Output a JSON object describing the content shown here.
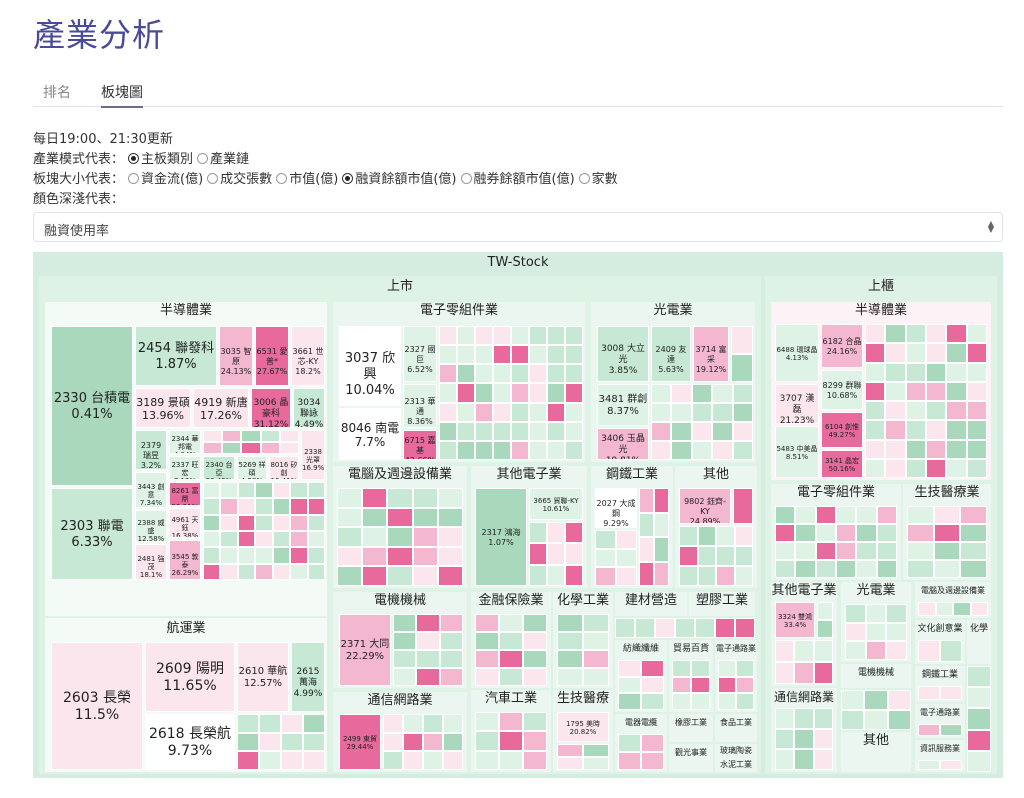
{
  "page_title": "產業分析",
  "tabs": [
    {
      "label": "排名"
    },
    {
      "label": "板塊圖"
    }
  ],
  "update_text": "每日19:00、21:30更新",
  "industry_mode": {
    "label": "產業模式代表：",
    "options": [
      "主板類別",
      "產業鏈"
    ],
    "selected": 0
  },
  "block_size": {
    "label": "板塊大小代表：",
    "options": [
      "資金流(億)",
      "成交張數",
      "市值(億)",
      "融資餘額市值(億)",
      "融券餘額市值(億)",
      "家數"
    ],
    "selected": 3
  },
  "color_depth": {
    "label": "顏色深淺代表："
  },
  "select": {
    "value": "融資使用率"
  },
  "colors": {
    "green_dark": "#a9d8bd",
    "green_mid": "#c6e8d4",
    "green_light": "#dff2e6",
    "pink_light": "#fbe6ee",
    "pink_mid": "#f3b7cf",
    "pink_dark": "#e86a9d",
    "frame": "#d4ede0"
  },
  "treemap": {
    "root": "TW-Stock",
    "markets": [
      {
        "name": "上市"
      },
      {
        "name": "上櫃"
      }
    ],
    "sectors": {
      "semi": "半導體業",
      "shipping": "航運業",
      "elec_comp": "電子零組件業",
      "opto": "光電業",
      "computer": "電腦及週邊設備業",
      "other_elec": "其他電子業",
      "steel": "鋼鐵工業",
      "other": "其他",
      "electric_machine": "電機機械",
      "finance": "金融保險業",
      "chemical": "化學工業",
      "building": "建材營造",
      "plastic": "塑膠工業",
      "comm": "通信網路業",
      "auto": "汽車工業",
      "biotech": "生技醫療業",
      "textile": "紡織纖維",
      "trade": "貿易百貨",
      "elec_channel": "電子通路業",
      "rubber": "橡膠工業",
      "food": "食品工業",
      "power": "電器電纜",
      "tourism": "觀光事業",
      "glass": "玻璃陶瓷",
      "cement": "水泥工業",
      "otc_semi": "半導體業",
      "otc_elec_comp": "電子零組件業",
      "otc_biotech": "生技醫療業",
      "otc_other_elec": "其他電子業",
      "otc_opto": "光電業",
      "otc_computer": "電腦及週邊設備業",
      "otc_electric_machine": "電機機械",
      "otc_culture": "文化創意業",
      "otc_chemical": "化學工業",
      "otc_comm": "通信網路業",
      "otc_steel": "鋼鐵工業",
      "otc_other": "其他",
      "otc_elec_channel": "電子通路業",
      "otc_info": "資訊服務業"
    },
    "stocks": {
      "s2330": {
        "name": "2330 台積電",
        "value": "0.41%"
      },
      "s2303": {
        "name": "2303 聯電",
        "value": "6.33%"
      },
      "s2454": {
        "name": "2454 聯發科",
        "value": "1.87%"
      },
      "s3035": {
        "name": "3035 智原",
        "value": "24.13%"
      },
      "s6531": {
        "name": "6531 愛普*",
        "value": "27.67%"
      },
      "s3661": {
        "name": "3661 世芯-KY",
        "value": "18.2%"
      },
      "s3189": {
        "name": "3189 景碩",
        "value": "13.96%"
      },
      "s4919": {
        "name": "4919 新唐",
        "value": "17.26%"
      },
      "s3006": {
        "name": "3006 晶豪科",
        "value": "31.12%"
      },
      "s3034": {
        "name": "3034 聯詠",
        "value": "4.49%"
      },
      "s2379": {
        "name": "2379 瑞昱",
        "value": "3.2%"
      },
      "s2344": {
        "name": "2344 華邦電",
        "value": "4.84%"
      },
      "s2337": {
        "name": "2337 旺宏",
        "value": "7.12%"
      },
      "s2340": {
        "name": "2340 台亞",
        "value": "20.45%"
      },
      "s5269": {
        "name": "5269 祥碩",
        "value": "4.58%"
      },
      "s8016": {
        "name": "8016 矽創",
        "value": "15.41%"
      },
      "s2338": {
        "name": "2338 光罩",
        "value": "16.9%"
      },
      "s3443": {
        "name": "3443 創意",
        "value": "7.34%"
      },
      "s8261": {
        "name": "8261 富鼎",
        "value": "55.91%"
      },
      "s2388": {
        "name": "2388 威盛",
        "value": "12.58%"
      },
      "s4961": {
        "name": "4961 天鈺",
        "value": "16.38%"
      },
      "s2481": {
        "name": "2481 強茂",
        "value": "18.1%"
      },
      "s3545": {
        "name": "3545 敦泰",
        "value": "26.29%"
      },
      "s2603": {
        "name": "2603 長榮",
        "value": "11.5%"
      },
      "s2609": {
        "name": "2609 陽明",
        "value": "11.65%"
      },
      "s2610": {
        "name": "2610 華航",
        "value": "12.57%"
      },
      "s2615": {
        "name": "2615 萬海",
        "value": "4.99%"
      },
      "s2618": {
        "name": "2618 長榮航",
        "value": "9.73%"
      },
      "s3037": {
        "name": "3037 欣興",
        "value": "10.04%"
      },
      "s2327": {
        "name": "2327 國巨",
        "value": "6.52%"
      },
      "s8046": {
        "name": "8046 南電",
        "value": "7.7%"
      },
      "s2313": {
        "name": "2313 華通",
        "value": "8.36%"
      },
      "s6715": {
        "name": "6715 嘉基",
        "value": "42.66%"
      },
      "s3008": {
        "name": "3008 大立光",
        "value": "3.85%"
      },
      "s2409": {
        "name": "2409 友達",
        "value": "5.63%"
      },
      "s3714": {
        "name": "3714 富采",
        "value": "19.12%"
      },
      "s3481": {
        "name": "3481 群創",
        "value": "8.37%"
      },
      "s3406": {
        "name": "3406 玉晶光",
        "value": "19.81%"
      },
      "s2317": {
        "name": "2317 鴻海",
        "value": "1.07%"
      },
      "s3665": {
        "name": "3665 貿聯-KY",
        "value": "10.61%"
      },
      "s2027": {
        "name": "2027 大成鋼",
        "value": "9.29%"
      },
      "s9802": {
        "name": "9802 鈺齊-KY",
        "value": "24.89%"
      },
      "s2371": {
        "name": "2371 大同",
        "value": "22.29%"
      },
      "s2499": {
        "name": "2499 東貿",
        "value": "29.44%"
      },
      "s1795": {
        "name": "1795 美時",
        "value": "20.82%"
      },
      "s6488": {
        "name": "6488 環球晶",
        "value": "4.13%"
      },
      "s6182": {
        "name": "6182 合晶",
        "value": "24.16%"
      },
      "s8299": {
        "name": "8299 群聯",
        "value": "10.68%"
      },
      "s3707": {
        "name": "3707 漢磊",
        "value": "21.23%"
      },
      "s6104": {
        "name": "6104 創惟",
        "value": "49.27%"
      },
      "s5483": {
        "name": "5483 中美晶",
        "value": "8.51%"
      },
      "s3141": {
        "name": "3141 晶宏",
        "value": "50.16%"
      },
      "s3324": {
        "name": "3324 雙鴻",
        "value": "33.4%"
      }
    }
  }
}
